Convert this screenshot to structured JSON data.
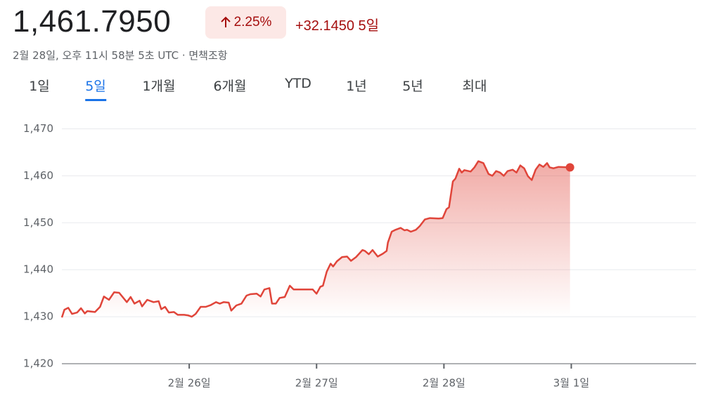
{
  "header": {
    "price": "1,461.7950",
    "change_percent": "2.25%",
    "change_value": "+32.1450",
    "period": "5일",
    "timestamp": "2월 28일, 오후 11시 58분 5초 UTC · 면책조항"
  },
  "tabs": [
    "1일",
    "5일",
    "1개월",
    "6개월",
    "YTD",
    "1년",
    "5년",
    "최대"
  ],
  "selected_tab": 1,
  "chart_data": {
    "type": "area",
    "color": "#e0453a",
    "x": [
      25.0,
      25.02,
      25.05,
      25.08,
      25.12,
      25.15,
      25.18,
      25.2,
      25.26,
      25.3,
      25.33,
      25.37,
      25.41,
      25.45,
      25.51,
      25.54,
      25.57,
      25.61,
      25.63,
      25.67,
      25.72,
      25.76,
      25.78,
      25.81,
      25.84,
      25.88,
      25.91,
      25.96,
      25.99,
      26.02,
      26.05,
      26.09,
      26.13,
      26.17,
      26.21,
      26.24,
      26.27,
      26.31,
      26.33,
      26.37,
      26.41,
      26.45,
      26.48,
      26.53,
      26.56,
      26.59,
      26.63,
      26.65,
      26.68,
      26.71,
      26.75,
      26.79,
      26.82,
      26.89,
      26.97,
      27.0,
      27.03,
      27.05,
      27.08,
      27.11,
      27.13,
      27.16,
      27.2,
      27.24,
      27.27,
      27.31,
      27.36,
      27.38,
      27.41,
      27.44,
      27.48,
      27.52,
      27.55,
      27.56,
      27.59,
      27.62,
      27.66,
      27.69,
      27.71,
      27.74,
      27.78,
      27.81,
      27.85,
      27.89,
      27.96,
      27.99,
      28.02,
      28.04,
      28.07,
      28.09,
      28.12,
      28.14,
      28.16,
      28.21,
      28.24,
      28.27,
      28.31,
      28.35,
      28.38,
      28.41,
      28.44,
      28.47,
      28.5,
      28.54,
      28.57,
      28.6,
      28.63,
      28.66,
      28.69,
      28.72,
      28.75,
      28.78,
      28.81,
      28.83,
      28.86,
      28.9,
      28.99
    ],
    "values": [
      1429.85,
      1431.5,
      1431.9,
      1430.6,
      1430.9,
      1431.8,
      1430.7,
      1431.2,
      1431.0,
      1432.1,
      1434.3,
      1433.6,
      1435.2,
      1435.1,
      1433.1,
      1434.2,
      1432.8,
      1433.4,
      1432.2,
      1433.6,
      1433.1,
      1433.3,
      1431.6,
      1432.1,
      1430.9,
      1431.0,
      1430.4,
      1430.4,
      1430.3,
      1430.0,
      1430.6,
      1432.1,
      1432.1,
      1432.5,
      1433.1,
      1432.8,
      1433.1,
      1433.0,
      1431.3,
      1432.4,
      1432.8,
      1434.5,
      1434.8,
      1434.9,
      1434.3,
      1435.8,
      1436.1,
      1432.8,
      1432.8,
      1434.0,
      1434.2,
      1436.6,
      1435.8,
      1435.8,
      1435.8,
      1434.9,
      1436.4,
      1436.6,
      1439.6,
      1441.3,
      1440.7,
      1441.8,
      1442.7,
      1442.8,
      1441.9,
      1442.7,
      1444.2,
      1444.0,
      1443.3,
      1444.2,
      1442.8,
      1443.4,
      1444.0,
      1445.8,
      1448.1,
      1448.5,
      1448.9,
      1448.4,
      1448.5,
      1448.1,
      1448.5,
      1449.3,
      1450.7,
      1451.0,
      1450.9,
      1451.0,
      1452.9,
      1453.3,
      1458.8,
      1459.4,
      1461.5,
      1460.7,
      1461.2,
      1460.9,
      1461.8,
      1463.1,
      1462.7,
      1460.4,
      1460.0,
      1461.0,
      1460.7,
      1460.0,
      1461.0,
      1461.3,
      1460.7,
      1462.2,
      1461.6,
      1459.9,
      1459.1,
      1461.3,
      1462.4,
      1461.9,
      1462.7,
      1461.8,
      1461.6,
      1461.9,
      1461.795
    ],
    "xlim": [
      25,
      29.98
    ],
    "xticks": [
      {
        "value": 26,
        "label": "2월 26일"
      },
      {
        "value": 27,
        "label": "2월 27일"
      },
      {
        "value": 28,
        "label": "2월 28일"
      },
      {
        "value": 29,
        "label": "3월 1일"
      }
    ],
    "ylim": [
      1420,
      1475
    ],
    "yticks": [
      {
        "value": 1420,
        "label": "1,420"
      },
      {
        "value": 1430,
        "label": "1,430"
      },
      {
        "value": 1440,
        "label": "1,440"
      },
      {
        "value": 1450,
        "label": "1,450"
      },
      {
        "value": 1460,
        "label": "1,460"
      },
      {
        "value": 1470,
        "label": "1,470"
      }
    ],
    "grid": true
  }
}
